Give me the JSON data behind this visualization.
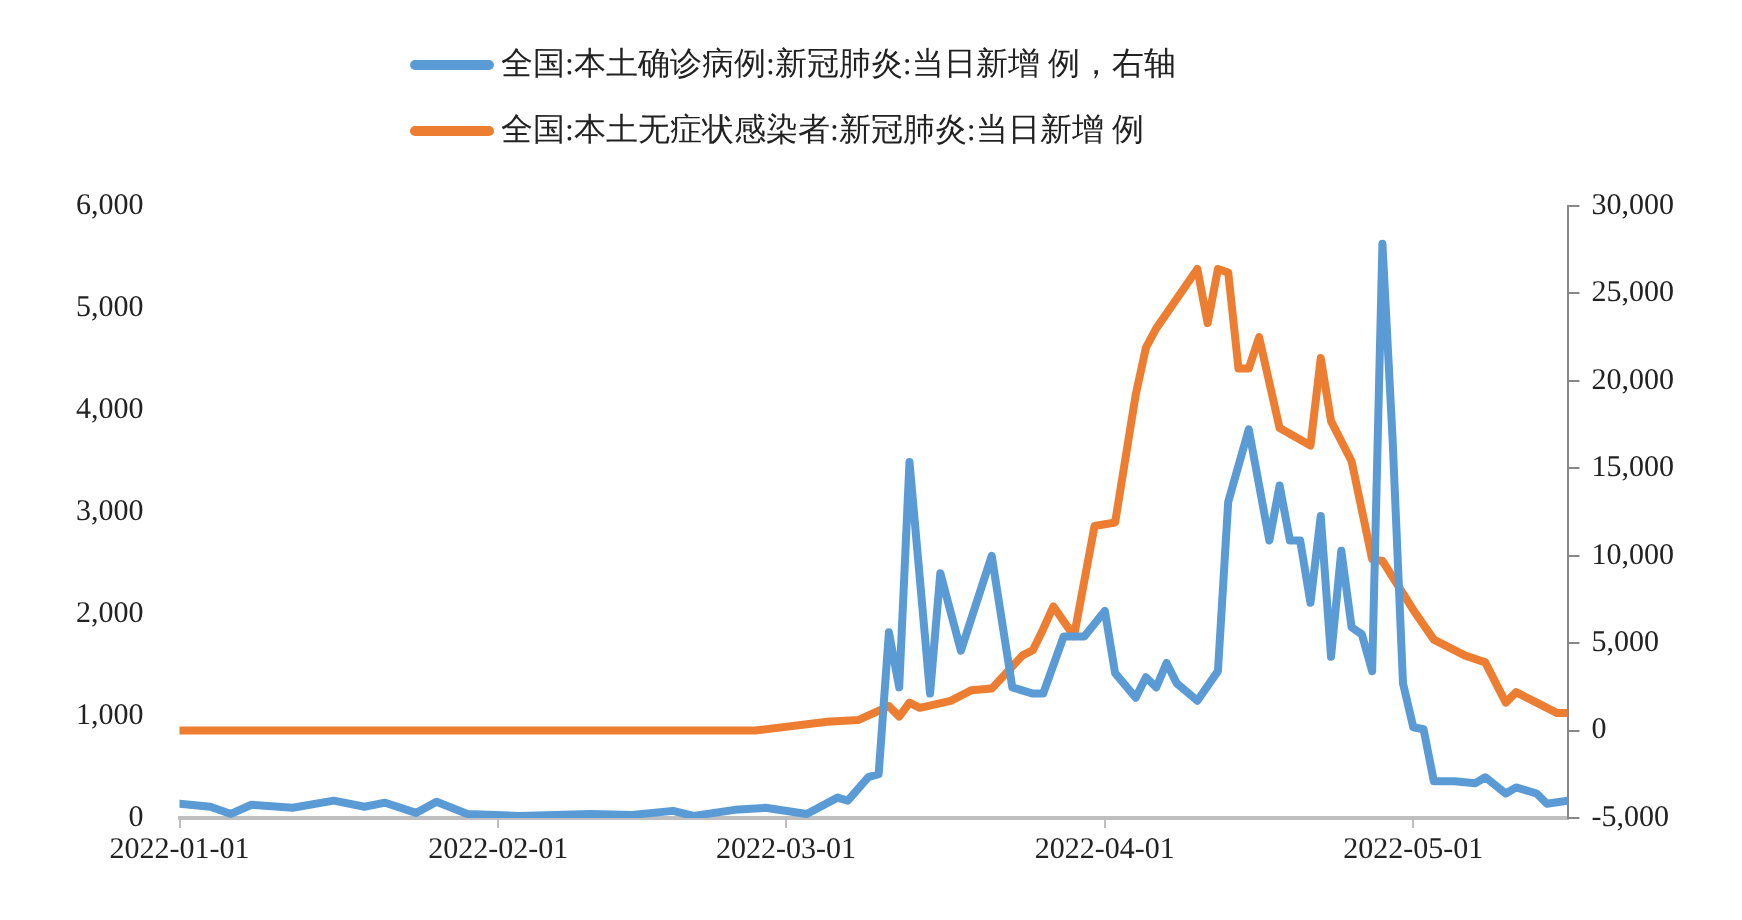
{
  "chart_data": {
    "type": "line",
    "legend": "top",
    "marker": "none",
    "line_style": "solid",
    "xlim": [
      "2022-01-01",
      "2022-05-16"
    ],
    "xticks": [
      "2022-01-01",
      "2022-02-01",
      "2022-03-01",
      "2022-04-01",
      "2022-05-01"
    ],
    "ylim": [
      0,
      6000
    ],
    "yticks": [
      0,
      {
        "value": 1000,
        "label": "1,000"
      },
      {
        "value": 2000,
        "label": "2,000"
      },
      {
        "value": 3000,
        "label": "3,000"
      },
      {
        "value": 4000,
        "label": "4,000"
      },
      {
        "value": 5000,
        "label": "5,000"
      },
      {
        "value": 6000,
        "label": "6,000"
      }
    ],
    "y2lim": [
      -5000,
      30000
    ],
    "y2ticks": [
      {
        "value": -5000,
        "label": "-5,000"
      },
      0,
      {
        "value": 5000,
        "label": "5,000"
      },
      {
        "value": 10000,
        "label": "10,000"
      },
      {
        "value": 15000,
        "label": "15,000"
      },
      {
        "value": 20000,
        "label": "20,000"
      },
      {
        "value": 25000,
        "label": "25,000"
      },
      {
        "value": 30000,
        "label": "30,000"
      }
    ],
    "series": [
      {
        "name": "全国:本土确诊病例:新冠肺炎:当日新增 例，右轴",
        "color": "#5b9bd5",
        "x": [
          "2022-01-01",
          "2022-01-04",
          "2022-01-06",
          "2022-01-08",
          "2022-01-12",
          "2022-01-16",
          "2022-01-19",
          "2022-01-21",
          "2022-01-24",
          "2022-01-26",
          "2022-01-29",
          "2022-02-03",
          "2022-02-10",
          "2022-02-14",
          "2022-02-18",
          "2022-02-20",
          "2022-02-24",
          "2022-02-27",
          "2022-03-03",
          "2022-03-06",
          "2022-03-07",
          "2022-03-09",
          "2022-03-10",
          "2022-03-11",
          "2022-03-12",
          "2022-03-13",
          "2022-03-15",
          "2022-03-16",
          "2022-03-18",
          "2022-03-21",
          "2022-03-23",
          "2022-03-25",
          "2022-03-26",
          "2022-03-28",
          "2022-03-30",
          "2022-04-01",
          "2022-04-02",
          "2022-04-04",
          "2022-04-05",
          "2022-04-06",
          "2022-04-07",
          "2022-04-08",
          "2022-04-10",
          "2022-04-12",
          "2022-04-13",
          "2022-04-15",
          "2022-04-17",
          "2022-04-18",
          "2022-04-19",
          "2022-04-20",
          "2022-04-21",
          "2022-04-22",
          "2022-04-23",
          "2022-04-24",
          "2022-04-25",
          "2022-04-26",
          "2022-04-27",
          "2022-04-28",
          "2022-04-29",
          "2022-04-30",
          "2022-05-01",
          "2022-05-02",
          "2022-05-03",
          "2022-05-05",
          "2022-05-07",
          "2022-05-08",
          "2022-05-10",
          "2022-05-11",
          "2022-05-13",
          "2022-05-14",
          "2022-05-16"
        ],
        "values": [
          140,
          110,
          40,
          130,
          100,
          170,
          110,
          150,
          50,
          160,
          40,
          20,
          40,
          30,
          70,
          20,
          80,
          100,
          40,
          200,
          170,
          400,
          430,
          1820,
          1280,
          3490,
          1220,
          2400,
          1640,
          2570,
          1280,
          1220,
          1220,
          1780,
          1780,
          2030,
          1420,
          1180,
          1380,
          1280,
          1520,
          1320,
          1150,
          1440,
          3100,
          3810,
          2720,
          3260,
          2720,
          2720,
          2110,
          2960,
          1580,
          2620,
          1870,
          1800,
          1440,
          5630,
          3690,
          1320,
          890,
          870,
          360,
          360,
          340,
          400,
          240,
          300,
          240,
          140,
          170
        ]
      },
      {
        "name": "全国:本土无症状感染者:新冠肺炎:当日新增 例",
        "color": "#ed7d31",
        "axis": "y2",
        "x": [
          "2022-01-01",
          "2022-02-26",
          "2022-03-05",
          "2022-03-08",
          "2022-03-11",
          "2022-03-12",
          "2022-03-13",
          "2022-03-14",
          "2022-03-17",
          "2022-03-19",
          "2022-03-21",
          "2022-03-24",
          "2022-03-25",
          "2022-03-26",
          "2022-03-27",
          "2022-03-29",
          "2022-03-31",
          "2022-04-02",
          "2022-04-04",
          "2022-04-05",
          "2022-04-06",
          "2022-04-10",
          "2022-04-11",
          "2022-04-12",
          "2022-04-13",
          "2022-04-14",
          "2022-04-15",
          "2022-04-16",
          "2022-04-18",
          "2022-04-21",
          "2022-04-22",
          "2022-04-23",
          "2022-04-25",
          "2022-04-27",
          "2022-04-28",
          "2022-05-01",
          "2022-05-03",
          "2022-05-06",
          "2022-05-08",
          "2022-05-10",
          "2022-05-11",
          "2022-05-13",
          "2022-05-15",
          "2022-05-16"
        ],
        "values": [
          0,
          0,
          500,
          600,
          1400,
          800,
          1600,
          1300,
          1700,
          2300,
          2400,
          4300,
          4600,
          5800,
          7100,
          5400,
          11700,
          11900,
          19200,
          21900,
          23000,
          26400,
          23300,
          26400,
          26200,
          20700,
          20700,
          22500,
          17300,
          16300,
          21300,
          17700,
          15400,
          9800,
          9700,
          6900,
          5200,
          4300,
          3900,
          1600,
          2200,
          1600,
          1000,
          1000
        ]
      }
    ]
  }
}
